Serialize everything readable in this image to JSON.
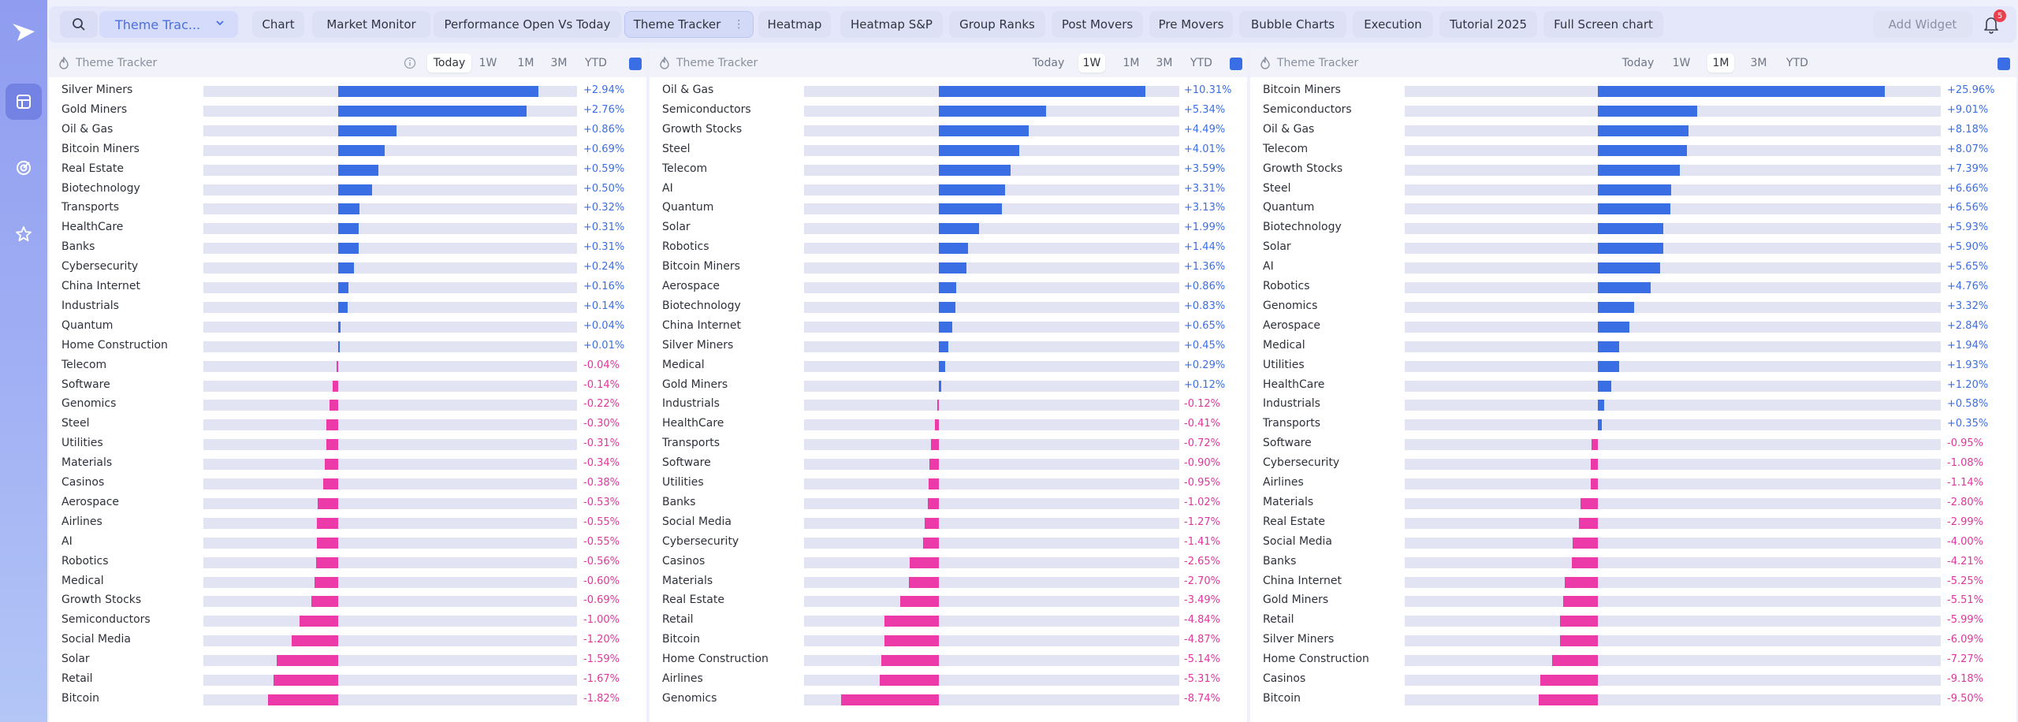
{
  "colors": {
    "positive": "#3a6ee5",
    "negative": "#ec3aa8",
    "track": "#e3e4f3",
    "accent": "#4a6fe0"
  },
  "sidebar": {
    "items": [
      {
        "icon": "dashboard-icon",
        "active": true
      },
      {
        "icon": "target-icon",
        "active": false
      },
      {
        "icon": "star-icon",
        "active": false
      }
    ]
  },
  "toolbar": {
    "dropdown_label": "Theme Trac...",
    "tabs": [
      {
        "label": "Chart"
      },
      {
        "label": "Market Monitor"
      },
      {
        "label": "Performance Open Vs Today"
      },
      {
        "label": "Theme Tracker",
        "active": true
      },
      {
        "label": "Heatmap"
      },
      {
        "label": "Heatmap S&P"
      },
      {
        "label": "Group Ranks"
      },
      {
        "label": "Post Movers"
      },
      {
        "label": "Pre Movers"
      },
      {
        "label": "Bubble Charts"
      },
      {
        "label": "Execution"
      },
      {
        "label": "Tutorial 2025"
      },
      {
        "label": "Full Screen chart"
      }
    ],
    "add_widget": "Add Widget",
    "notification_count": "5"
  },
  "panels": [
    {
      "title": "Theme Tracker",
      "timeframes": [
        "Today",
        "1W",
        "1M",
        "3M",
        "YTD"
      ],
      "active_timeframe": "Today",
      "max_abs": 3.5,
      "rows": [
        {
          "name": "Silver Miners",
          "value": 2.94,
          "label": "+2.94%"
        },
        {
          "name": "Gold Miners",
          "value": 2.76,
          "label": "+2.76%"
        },
        {
          "name": "Oil & Gas",
          "value": 0.86,
          "label": "+0.86%"
        },
        {
          "name": "Bitcoin Miners",
          "value": 0.69,
          "label": "+0.69%"
        },
        {
          "name": "Real Estate",
          "value": 0.59,
          "label": "+0.59%"
        },
        {
          "name": "Biotechnology",
          "value": 0.5,
          "label": "+0.50%"
        },
        {
          "name": "Transports",
          "value": 0.32,
          "label": "+0.32%"
        },
        {
          "name": "HealthCare",
          "value": 0.31,
          "label": "+0.31%"
        },
        {
          "name": "Banks",
          "value": 0.31,
          "label": "+0.31%"
        },
        {
          "name": "Cybersecurity",
          "value": 0.24,
          "label": "+0.24%"
        },
        {
          "name": "China Internet",
          "value": 0.16,
          "label": "+0.16%"
        },
        {
          "name": "Industrials",
          "value": 0.14,
          "label": "+0.14%"
        },
        {
          "name": "Quantum",
          "value": 0.04,
          "label": "+0.04%"
        },
        {
          "name": "Home Construction",
          "value": 0.01,
          "label": "+0.01%"
        },
        {
          "name": "Telecom",
          "value": -0.04,
          "label": "-0.04%"
        },
        {
          "name": "Software",
          "value": -0.14,
          "label": "-0.14%"
        },
        {
          "name": "Genomics",
          "value": -0.22,
          "label": "-0.22%"
        },
        {
          "name": "Steel",
          "value": -0.3,
          "label": "-0.30%"
        },
        {
          "name": "Utilities",
          "value": -0.31,
          "label": "-0.31%"
        },
        {
          "name": "Materials",
          "value": -0.34,
          "label": "-0.34%"
        },
        {
          "name": "Casinos",
          "value": -0.38,
          "label": "-0.38%"
        },
        {
          "name": "Aerospace",
          "value": -0.53,
          "label": "-0.53%"
        },
        {
          "name": "Airlines",
          "value": -0.55,
          "label": "-0.55%"
        },
        {
          "name": "AI",
          "value": -0.55,
          "label": "-0.55%"
        },
        {
          "name": "Robotics",
          "value": -0.56,
          "label": "-0.56%"
        },
        {
          "name": "Medical",
          "value": -0.6,
          "label": "-0.60%"
        },
        {
          "name": "Growth Stocks",
          "value": -0.69,
          "label": "-0.69%"
        },
        {
          "name": "Semiconductors",
          "value": -1.0,
          "label": "-1.00%"
        },
        {
          "name": "Social Media",
          "value": -1.2,
          "label": "-1.20%"
        },
        {
          "name": "Solar",
          "value": -1.59,
          "label": "-1.59%"
        },
        {
          "name": "Retail",
          "value": -1.67,
          "label": "-1.67%"
        },
        {
          "name": "Bitcoin",
          "value": -1.82,
          "label": "-1.82%"
        }
      ]
    },
    {
      "title": "Theme Tracker",
      "timeframes": [
        "Today",
        "1W",
        "1M",
        "3M",
        "YTD"
      ],
      "active_timeframe": "1W",
      "max_abs": 12.0,
      "rows": [
        {
          "name": "Oil & Gas",
          "value": 10.31,
          "label": "+10.31%"
        },
        {
          "name": "Semiconductors",
          "value": 5.34,
          "label": "+5.34%"
        },
        {
          "name": "Growth Stocks",
          "value": 4.49,
          "label": "+4.49%"
        },
        {
          "name": "Steel",
          "value": 4.01,
          "label": "+4.01%"
        },
        {
          "name": "Telecom",
          "value": 3.59,
          "label": "+3.59%"
        },
        {
          "name": "AI",
          "value": 3.31,
          "label": "+3.31%"
        },
        {
          "name": "Quantum",
          "value": 3.13,
          "label": "+3.13%"
        },
        {
          "name": "Solar",
          "value": 1.99,
          "label": "+1.99%"
        },
        {
          "name": "Robotics",
          "value": 1.44,
          "label": "+1.44%"
        },
        {
          "name": "Bitcoin Miners",
          "value": 1.36,
          "label": "+1.36%"
        },
        {
          "name": "Aerospace",
          "value": 0.86,
          "label": "+0.86%"
        },
        {
          "name": "Biotechnology",
          "value": 0.83,
          "label": "+0.83%"
        },
        {
          "name": "China Internet",
          "value": 0.65,
          "label": "+0.65%"
        },
        {
          "name": "Silver Miners",
          "value": 0.45,
          "label": "+0.45%"
        },
        {
          "name": "Medical",
          "value": 0.29,
          "label": "+0.29%"
        },
        {
          "name": "Gold Miners",
          "value": 0.12,
          "label": "+0.12%"
        },
        {
          "name": "Industrials",
          "value": -0.12,
          "label": "-0.12%"
        },
        {
          "name": "HealthCare",
          "value": -0.41,
          "label": "-0.41%"
        },
        {
          "name": "Transports",
          "value": -0.72,
          "label": "-0.72%"
        },
        {
          "name": "Software",
          "value": -0.9,
          "label": "-0.90%"
        },
        {
          "name": "Utilities",
          "value": -0.95,
          "label": "-0.95%"
        },
        {
          "name": "Banks",
          "value": -1.02,
          "label": "-1.02%"
        },
        {
          "name": "Social Media",
          "value": -1.27,
          "label": "-1.27%"
        },
        {
          "name": "Cybersecurity",
          "value": -1.41,
          "label": "-1.41%"
        },
        {
          "name": "Casinos",
          "value": -2.65,
          "label": "-2.65%"
        },
        {
          "name": "Materials",
          "value": -2.7,
          "label": "-2.70%"
        },
        {
          "name": "Real Estate",
          "value": -3.49,
          "label": "-3.49%"
        },
        {
          "name": "Retail",
          "value": -4.84,
          "label": "-4.84%"
        },
        {
          "name": "Bitcoin",
          "value": -4.87,
          "label": "-4.87%"
        },
        {
          "name": "Home Construction",
          "value": -5.14,
          "label": "-5.14%"
        },
        {
          "name": "Airlines",
          "value": -5.31,
          "label": "-5.31%"
        },
        {
          "name": "Genomics",
          "value": -8.74,
          "label": "-8.74%"
        }
      ]
    },
    {
      "title": "Theme Tracker",
      "timeframes": [
        "Today",
        "1W",
        "1M",
        "3M",
        "YTD"
      ],
      "active_timeframe": "1M",
      "max_abs": 31.0,
      "rows": [
        {
          "name": "Bitcoin Miners",
          "value": 25.96,
          "label": "+25.96%"
        },
        {
          "name": "Semiconductors",
          "value": 9.01,
          "label": "+9.01%"
        },
        {
          "name": "Oil & Gas",
          "value": 8.18,
          "label": "+8.18%"
        },
        {
          "name": "Telecom",
          "value": 8.07,
          "label": "+8.07%"
        },
        {
          "name": "Growth Stocks",
          "value": 7.39,
          "label": "+7.39%"
        },
        {
          "name": "Steel",
          "value": 6.66,
          "label": "+6.66%"
        },
        {
          "name": "Quantum",
          "value": 6.56,
          "label": "+6.56%"
        },
        {
          "name": "Biotechnology",
          "value": 5.93,
          "label": "+5.93%"
        },
        {
          "name": "Solar",
          "value": 5.9,
          "label": "+5.90%"
        },
        {
          "name": "AI",
          "value": 5.65,
          "label": "+5.65%"
        },
        {
          "name": "Robotics",
          "value": 4.76,
          "label": "+4.76%"
        },
        {
          "name": "Genomics",
          "value": 3.32,
          "label": "+3.32%"
        },
        {
          "name": "Aerospace",
          "value": 2.84,
          "label": "+2.84%"
        },
        {
          "name": "Medical",
          "value": 1.94,
          "label": "+1.94%"
        },
        {
          "name": "Utilities",
          "value": 1.93,
          "label": "+1.93%"
        },
        {
          "name": "HealthCare",
          "value": 1.2,
          "label": "+1.20%"
        },
        {
          "name": "Industrials",
          "value": 0.58,
          "label": "+0.58%"
        },
        {
          "name": "Transports",
          "value": 0.35,
          "label": "+0.35%"
        },
        {
          "name": "Software",
          "value": -0.95,
          "label": "-0.95%"
        },
        {
          "name": "Cybersecurity",
          "value": -1.08,
          "label": "-1.08%"
        },
        {
          "name": "Airlines",
          "value": -1.14,
          "label": "-1.14%"
        },
        {
          "name": "Materials",
          "value": -2.8,
          "label": "-2.80%"
        },
        {
          "name": "Real Estate",
          "value": -2.99,
          "label": "-2.99%"
        },
        {
          "name": "Social Media",
          "value": -4.0,
          "label": "-4.00%"
        },
        {
          "name": "Banks",
          "value": -4.21,
          "label": "-4.21%"
        },
        {
          "name": "China Internet",
          "value": -5.25,
          "label": "-5.25%"
        },
        {
          "name": "Gold Miners",
          "value": -5.51,
          "label": "-5.51%"
        },
        {
          "name": "Retail",
          "value": -5.99,
          "label": "-5.99%"
        },
        {
          "name": "Silver Miners",
          "value": -6.09,
          "label": "-6.09%"
        },
        {
          "name": "Home Construction",
          "value": -7.27,
          "label": "-7.27%"
        },
        {
          "name": "Casinos",
          "value": -9.18,
          "label": "-9.18%"
        },
        {
          "name": "Bitcoin",
          "value": -9.5,
          "label": "-9.50%"
        }
      ]
    }
  ]
}
